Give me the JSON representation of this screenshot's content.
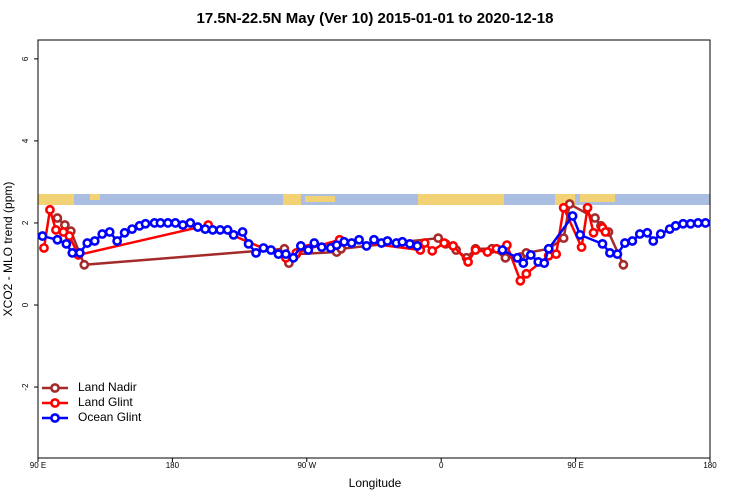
{
  "chart_data": {
    "type": "line",
    "title": "17.5N-22.5N May (Ver 10)   2015-01-01 to 2020-12-18",
    "x_label": "Longitude",
    "y_label": "XCO2 - MLO trend (ppm)",
    "xlim": [
      90,
      540
    ],
    "ylim": [
      -3.73,
      6.46
    ],
    "xticks": [
      {
        "value": 90,
        "label": "90 E"
      },
      180,
      {
        "value": 270,
        "label": "90 W"
      },
      {
        "value": 360,
        "label": "0"
      },
      {
        "value": 450,
        "label": "90 E"
      },
      {
        "value": 540,
        "label": "180"
      }
    ],
    "yticks": [
      -2,
      0,
      2,
      4,
      6
    ],
    "legend": "bottomleft",
    "series": [
      {
        "name": "Land Nadir",
        "color": "#a52a2a",
        "x": [
          103,
          108,
          112,
          121,
          255,
          258,
          263,
          290,
          293,
          358,
          363,
          370,
          377,
          383,
          394,
          403,
          413,
          417,
          432,
          442,
          446,
          463,
          467,
          472,
          482
        ],
        "values": [
          2.12,
          1.95,
          1.8,
          0.98,
          1.37,
          1.02,
          1.24,
          1.29,
          1.37,
          1.63,
          1.49,
          1.34,
          1.15,
          1.37,
          1.37,
          1.15,
          1.17,
          1.27,
          1.37,
          1.63,
          2.46,
          2.12,
          1.93,
          1.78,
          0.98
        ]
      },
      {
        "name": "Land Glint",
        "color": "#ff0000",
        "x": [
          94,
          98,
          102,
          107,
          111,
          117,
          204,
          256,
          263,
          271,
          292,
          346,
          349,
          354,
          362,
          368,
          378,
          383,
          391,
          397,
          404,
          413,
          417,
          432,
          437,
          442,
          454,
          458,
          462,
          468,
          470
        ],
        "values": [
          1.39,
          2.32,
          1.83,
          1.78,
          1.68,
          1.22,
          1.95,
          1.15,
          1.27,
          1.37,
          1.59,
          1.34,
          1.51,
          1.32,
          1.51,
          1.44,
          1.05,
          1.34,
          1.29,
          1.37,
          1.46,
          0.59,
          0.76,
          1.2,
          1.24,
          2.37,
          1.41,
          2.37,
          1.76,
          1.88,
          1.78
        ]
      },
      {
        "name": "Ocean Glint",
        "color": "#0000ff",
        "x": [
          93,
          103,
          109,
          113,
          118,
          123,
          128,
          133,
          138,
          143,
          148,
          153,
          158,
          162,
          168,
          172,
          177,
          182,
          187,
          192,
          197,
          202,
          207,
          212,
          217,
          221,
          227,
          231,
          236,
          241,
          246,
          251,
          256,
          261,
          266,
          271,
          275,
          280,
          286,
          290,
          295,
          300,
          305,
          310,
          315,
          320,
          324,
          330,
          334,
          339,
          344,
          372,
          401,
          411,
          415,
          420,
          425,
          429,
          432,
          448,
          453,
          468,
          473,
          478,
          483,
          488,
          493,
          498,
          502,
          507,
          513,
          517,
          522,
          527,
          532,
          537
        ],
        "values": [
          1.68,
          1.59,
          1.49,
          1.27,
          1.27,
          1.51,
          1.56,
          1.73,
          1.78,
          1.56,
          1.76,
          1.85,
          1.93,
          1.98,
          2.0,
          2.0,
          2.0,
          2.0,
          1.95,
          2.0,
          1.9,
          1.85,
          1.83,
          1.83,
          1.83,
          1.71,
          1.78,
          1.49,
          1.27,
          1.39,
          1.34,
          1.24,
          1.24,
          1.15,
          1.44,
          1.34,
          1.51,
          1.41,
          1.39,
          1.46,
          1.54,
          1.51,
          1.59,
          1.44,
          1.59,
          1.51,
          1.56,
          1.51,
          1.54,
          1.49,
          1.44,
          null,
          1.34,
          1.15,
          1.02,
          1.22,
          1.05,
          1.02,
          1.37,
          2.17,
          1.71,
          1.49,
          1.27,
          1.24,
          1.51,
          1.56,
          1.73,
          1.76,
          1.56,
          1.73,
          1.85,
          1.93,
          1.98,
          1.98,
          2.0,
          2.0
        ]
      }
    ]
  }
}
